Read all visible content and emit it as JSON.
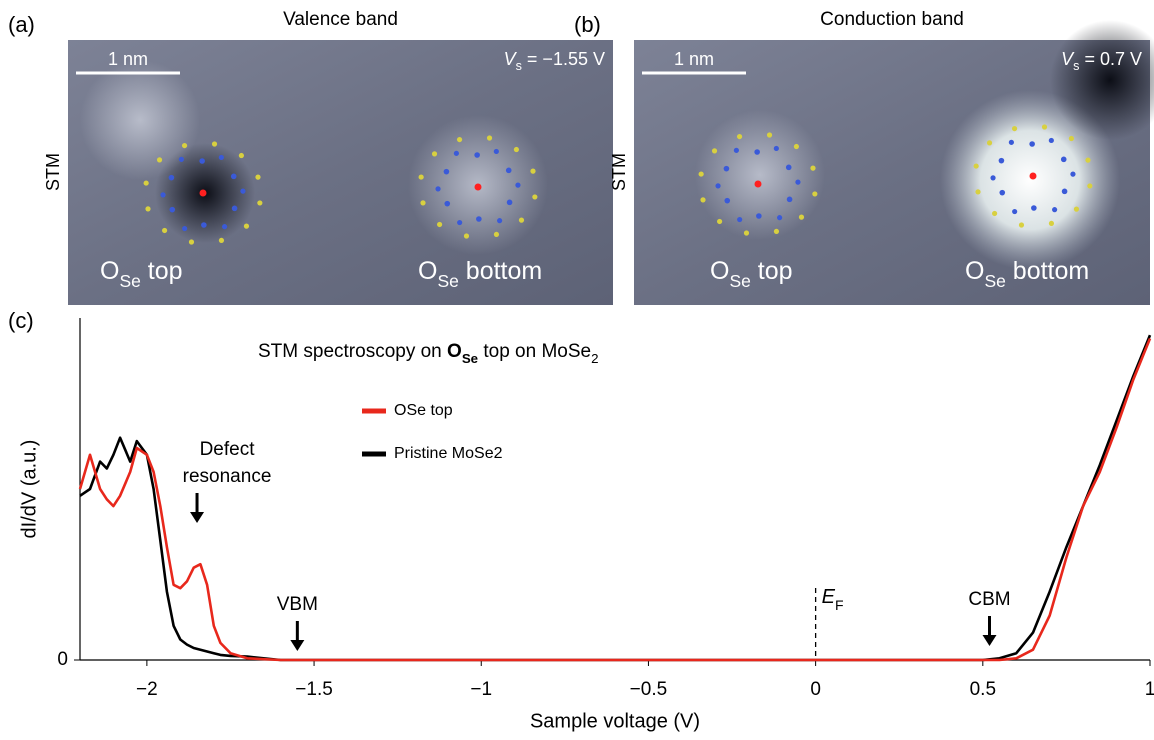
{
  "panels": [
    {
      "label": "(a)",
      "title": "Valence band",
      "scale": "1 nm",
      "bias": {
        "symbol": "V",
        "sub": "s",
        "text": " = −1.55 V"
      },
      "side_label": "STM",
      "defects": [
        {
          "main": "O",
          "sub": "Se",
          "text": " top"
        },
        {
          "main": "O",
          "sub": "Se",
          "text": " bottom"
        }
      ]
    },
    {
      "label": "(b)",
      "title": "Conduction band",
      "scale": "1 nm",
      "bias": {
        "symbol": "V",
        "sub": "s",
        "text": " = 0.7 V"
      },
      "side_label": "STM",
      "defects": [
        {
          "main": "O",
          "sub": "Se",
          "text": " top"
        },
        {
          "main": "O",
          "sub": "Se",
          "text": " bottom"
        }
      ]
    }
  ],
  "chart_data": {
    "type": "line",
    "panel_label": "(c)",
    "title_parts": [
      {
        "text": "STM spectroscopy on "
      },
      {
        "text": "O",
        "bold": true
      },
      {
        "text": "Se",
        "bold": true,
        "sub": true
      },
      {
        "text": " top on MoSe"
      },
      {
        "text": "2",
        "sub": true
      }
    ],
    "xlabel": "Sample voltage (V)",
    "ylabel": "dI/dV (a.u.)",
    "xlim": [
      -2.2,
      1
    ],
    "ylim": [
      0,
      1
    ],
    "xticks": [
      {
        "value": -2,
        "label": "−2"
      },
      {
        "value": -1.5,
        "label": "−1.5"
      },
      {
        "value": -1,
        "label": "−1"
      },
      {
        "value": -0.5,
        "label": "−0.5"
      },
      0,
      0.5,
      1
    ],
    "yticks": [
      0
    ],
    "x": [
      -2.2,
      -2.17,
      -2.14,
      -2.12,
      -2.1,
      -2.08,
      -2.05,
      -2.03,
      -2.0,
      -1.98,
      -1.96,
      -1.94,
      -1.92,
      -1.9,
      -1.88,
      -1.86,
      -1.84,
      -1.82,
      -1.8,
      -1.78,
      -1.75,
      -1.7,
      -1.6,
      -1.5,
      -1,
      -0.5,
      0,
      0.5,
      0.55,
      0.6,
      0.65,
      0.7,
      0.75,
      0.8,
      0.85,
      0.9,
      0.95,
      1.0
    ],
    "series": [
      {
        "name": "Pristine MoSe2",
        "color": "#000000",
        "values": [
          0.48,
          0.5,
          0.58,
          0.56,
          0.6,
          0.65,
          0.58,
          0.64,
          0.6,
          0.5,
          0.35,
          0.2,
          0.1,
          0.06,
          0.045,
          0.035,
          0.03,
          0.025,
          0.02,
          0.015,
          0.012,
          0.01,
          0,
          0,
          0,
          0,
          0,
          0,
          0.005,
          0.02,
          0.08,
          0.2,
          0.33,
          0.45,
          0.57,
          0.7,
          0.83,
          0.95
        ]
      },
      {
        "name": "OSe top",
        "color": "#e8281c",
        "values": [
          0.5,
          0.6,
          0.5,
          0.47,
          0.45,
          0.48,
          0.55,
          0.62,
          0.6,
          0.55,
          0.45,
          0.33,
          0.22,
          0.21,
          0.23,
          0.27,
          0.28,
          0.22,
          0.1,
          0.05,
          0.02,
          0.005,
          0,
          0,
          0,
          0,
          0,
          0,
          0,
          0.005,
          0.03,
          0.13,
          0.3,
          0.45,
          0.55,
          0.68,
          0.82,
          0.94
        ]
      }
    ],
    "annotations": [
      {
        "lines": [
          "Defect",
          "resonance"
        ],
        "x": -1.85
      },
      {
        "lines": [
          "VBM"
        ],
        "x": -1.55
      },
      {
        "lines": [
          "CBM"
        ],
        "x": 0.52
      }
    ],
    "fermi": {
      "text": "E",
      "sub": "F",
      "x": 0
    }
  }
}
